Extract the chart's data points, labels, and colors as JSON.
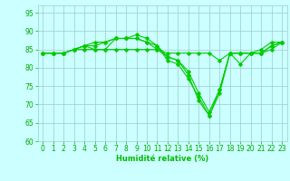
{
  "series": [
    {
      "x": [
        0,
        1,
        2,
        3,
        4,
        5,
        6,
        7,
        8,
        9,
        10,
        11,
        12,
        13,
        14,
        15,
        16,
        17,
        18,
        19,
        20,
        21,
        22,
        23
      ],
      "y": [
        84,
        84,
        84,
        85,
        86,
        85,
        85,
        88,
        88,
        89,
        88,
        86,
        82,
        81,
        77,
        72,
        67,
        74,
        84,
        84,
        84,
        85,
        87,
        87
      ]
    },
    {
      "x": [
        0,
        1,
        2,
        3,
        4,
        5,
        6,
        7,
        8,
        9,
        10,
        11,
        12,
        13,
        14,
        15,
        16,
        17,
        18,
        19,
        20,
        21,
        22,
        23
      ],
      "y": [
        84,
        84,
        84,
        85,
        86,
        86,
        87,
        88,
        88,
        88,
        87,
        85,
        83,
        82,
        78,
        71,
        67,
        73,
        84,
        84,
        84,
        84,
        86,
        87
      ]
    },
    {
      "x": [
        0,
        1,
        2,
        3,
        4,
        5,
        6,
        7,
        8,
        9,
        10,
        11,
        12,
        13,
        14,
        15,
        16,
        17,
        18,
        19,
        20,
        21,
        22,
        23
      ],
      "y": [
        84,
        84,
        84,
        85,
        85,
        85,
        85,
        85,
        85,
        85,
        85,
        85,
        84,
        84,
        84,
        84,
        84,
        82,
        84,
        84,
        84,
        84,
        85,
        87
      ]
    },
    {
      "x": [
        0,
        1,
        2,
        3,
        4,
        5,
        6,
        7,
        8,
        9,
        10,
        11,
        12,
        13,
        14,
        15,
        16,
        17,
        18,
        19,
        20,
        21,
        22,
        23
      ],
      "y": [
        84,
        84,
        84,
        85,
        86,
        87,
        87,
        88,
        88,
        88,
        87,
        86,
        83,
        82,
        79,
        73,
        68,
        74,
        84,
        81,
        84,
        84,
        86,
        87
      ]
    }
  ],
  "line_color": "#00cc00",
  "marker": "D",
  "markersize": 1.8,
  "linewidth": 0.8,
  "xlim": [
    -0.5,
    23.5
  ],
  "ylim": [
    60,
    97
  ],
  "yticks": [
    60,
    65,
    70,
    75,
    80,
    85,
    90,
    95
  ],
  "xticks": [
    0,
    1,
    2,
    3,
    4,
    5,
    6,
    7,
    8,
    9,
    10,
    11,
    12,
    13,
    14,
    15,
    16,
    17,
    18,
    19,
    20,
    21,
    22,
    23
  ],
  "xlabel": "Humidité relative (%)",
  "xlabel_color": "#00bb00",
  "xlabel_fontsize": 6,
  "tick_fontsize": 5.5,
  "bg_color": "#ccffff",
  "grid_color": "#99cccc",
  "tick_color": "#00aa00"
}
